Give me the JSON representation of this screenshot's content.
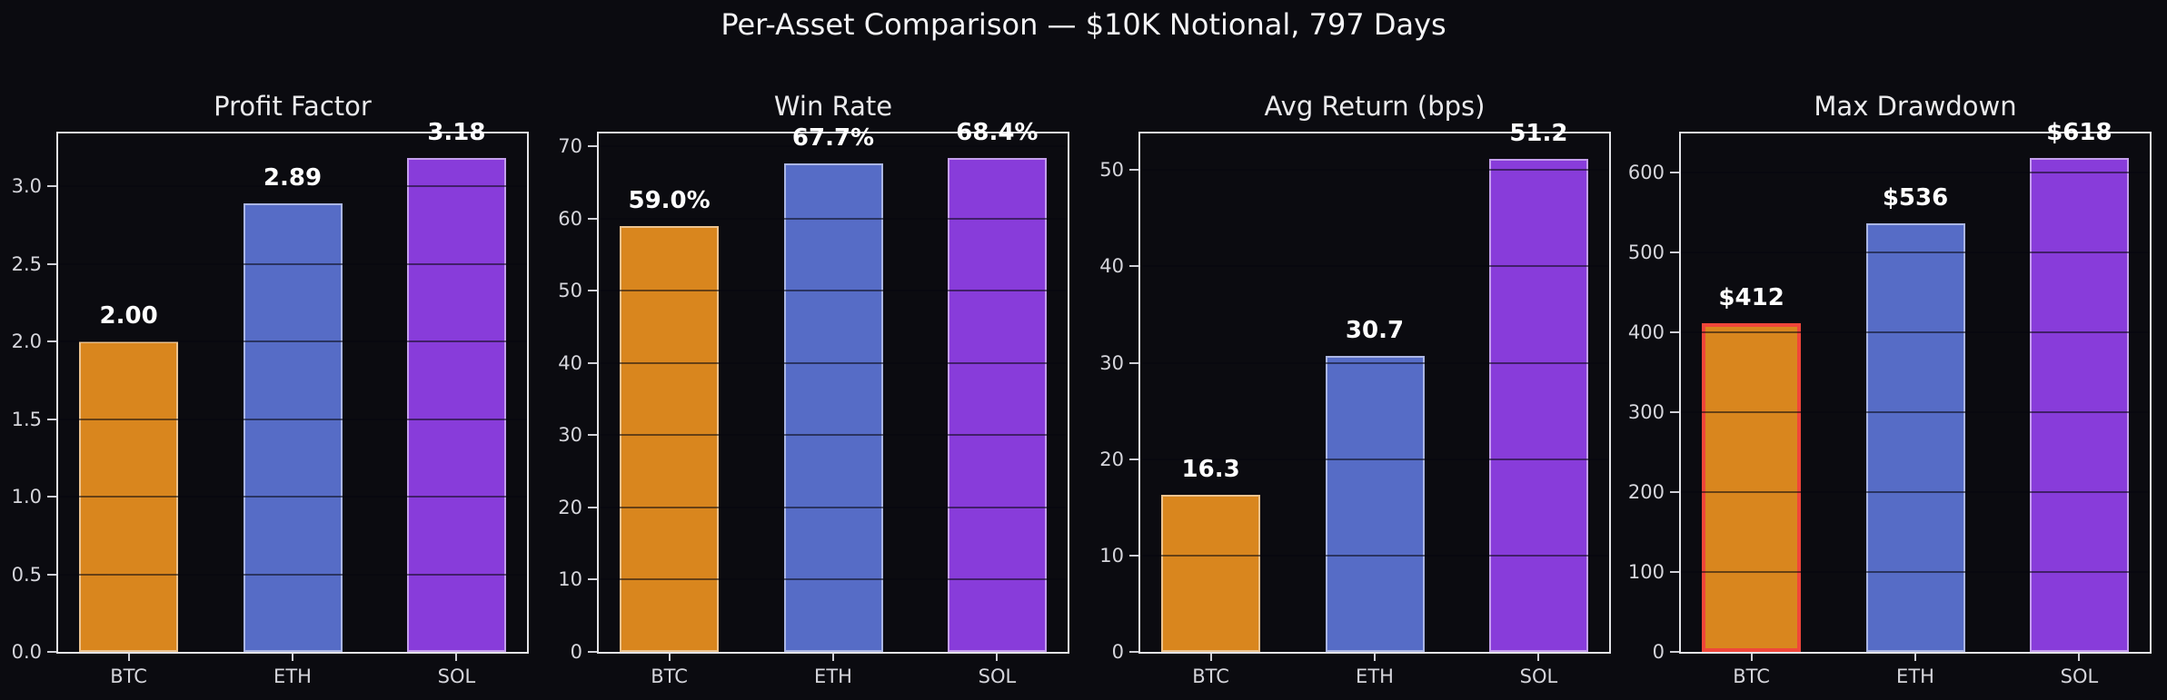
{
  "title": "Per-Asset Comparison — $10K Notional, 797 Days",
  "palette": {
    "BTC": "#d9861e",
    "ETH": "#566cc6",
    "SOL": "#883cda",
    "bar_edge": "rgba(255,255,255,0.5)",
    "highlight_edge": "#f0463a",
    "background": "#0b0b10",
    "spine": "#e3e3e7",
    "text": "#eaeaec"
  },
  "chart_data": [
    {
      "type": "bar",
      "title": "Profit Factor",
      "categories": [
        "BTC",
        "ETH",
        "SOL"
      ],
      "values": [
        2.0,
        2.89,
        3.18
      ],
      "value_labels": [
        "2.00",
        "2.89",
        "3.18"
      ],
      "ylim": [
        0,
        3.34
      ],
      "yticks": [
        0.0,
        0.5,
        1.0,
        1.5,
        2.0,
        2.5,
        3.0
      ],
      "ytick_labels": [
        "0.0",
        "0.5",
        "1.0",
        "1.5",
        "2.0",
        "2.5",
        "3.0"
      ],
      "grid": true,
      "highlight_bar": null
    },
    {
      "type": "bar",
      "title": "Win Rate",
      "categories": [
        "BTC",
        "ETH",
        "SOL"
      ],
      "values": [
        59.0,
        67.7,
        68.4
      ],
      "value_labels": [
        "59.0%",
        "67.7%",
        "68.4%"
      ],
      "ylim": [
        0,
        71.8
      ],
      "yticks": [
        0,
        10,
        20,
        30,
        40,
        50,
        60,
        70
      ],
      "ytick_labels": [
        "0",
        "10",
        "20",
        "30",
        "40",
        "50",
        "60",
        "70"
      ],
      "grid": true,
      "highlight_bar": null
    },
    {
      "type": "bar",
      "title": "Avg Return (bps)",
      "categories": [
        "BTC",
        "ETH",
        "SOL"
      ],
      "values": [
        16.3,
        30.7,
        51.2
      ],
      "value_labels": [
        "16.3",
        "30.7",
        "51.2"
      ],
      "ylim": [
        0,
        53.8
      ],
      "yticks": [
        0,
        10,
        20,
        30,
        40,
        50
      ],
      "ytick_labels": [
        "0",
        "10",
        "20",
        "30",
        "40",
        "50"
      ],
      "grid": true,
      "highlight_bar": null
    },
    {
      "type": "bar",
      "title": "Max Drawdown",
      "categories": [
        "BTC",
        "ETH",
        "SOL"
      ],
      "values": [
        412,
        536,
        618
      ],
      "value_labels": [
        "$412",
        "$536",
        "$618"
      ],
      "ylim": [
        0,
        649
      ],
      "yticks": [
        0,
        100,
        200,
        300,
        400,
        500,
        600
      ],
      "ytick_labels": [
        "0",
        "100",
        "200",
        "300",
        "400",
        "500",
        "600"
      ],
      "grid": true,
      "highlight_bar": 0
    }
  ]
}
